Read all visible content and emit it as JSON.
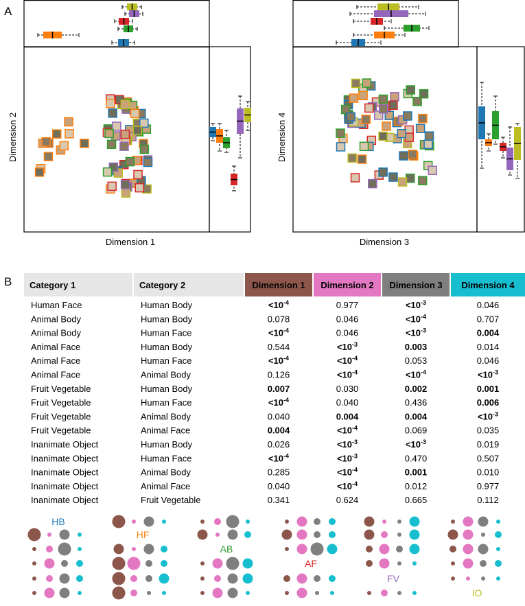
{
  "panel_a": {
    "label": "A",
    "plots": [
      {
        "y_label": "Dimension 2",
        "x_label": "Dimension 1"
      },
      {
        "y_label": "Dimension 4",
        "x_label": "Dimension 3"
      }
    ]
  },
  "panel_b": {
    "label": "B",
    "table": {
      "header": [
        "Category 1",
        "Category 2",
        "Dimension 1",
        "Dimension 2",
        "Dimension 3",
        "Dimension 4"
      ],
      "header_colors": [
        "#e6e6e6",
        "#e6e6e6",
        "#8c564b",
        "#e377c2",
        "#7f7f7f",
        "#17becf"
      ],
      "rows": [
        [
          "Human Face",
          "Human Body",
          {
            "text": "<10",
            "sup": "-4",
            "bold": true
          },
          {
            "text": "0.977"
          },
          {
            "text": "<10",
            "sup": "-3",
            "bold": true
          },
          {
            "text": "0.046"
          }
        ],
        [
          "Animal Body",
          "Human Body",
          {
            "text": "0.078"
          },
          {
            "text": "0.046"
          },
          {
            "text": "<10",
            "sup": "-4",
            "bold": true
          },
          {
            "text": "0.707"
          }
        ],
        [
          "Animal Body",
          "Human Face",
          {
            "text": "<10",
            "sup": "-4",
            "bold": true
          },
          {
            "text": "0.046"
          },
          {
            "text": "<10",
            "sup": "-3",
            "bold": true
          },
          {
            "text": "0.004",
            "bold": true
          }
        ],
        [
          "Animal Face",
          "Human Body",
          {
            "text": "0.544"
          },
          {
            "text": "<10",
            "sup": "-3",
            "bold": true
          },
          {
            "text": "0.003",
            "bold": true
          },
          {
            "text": "0.014"
          }
        ],
        [
          "Animal Face",
          "Human Face",
          {
            "text": "<10",
            "sup": "-4",
            "bold": true
          },
          {
            "text": "<10",
            "sup": "-4",
            "bold": true
          },
          {
            "text": "0.053"
          },
          {
            "text": "0.046"
          }
        ],
        [
          "Animal Face",
          "Animal Body",
          {
            "text": "0.126"
          },
          {
            "text": "<10",
            "sup": "-4",
            "bold": true
          },
          {
            "text": "<10",
            "sup": "-4",
            "bold": true
          },
          {
            "text": "<10",
            "sup": "-3",
            "bold": true
          }
        ],
        [
          "Fruit Vegetable",
          "Human Body",
          {
            "text": "0.007",
            "bold": true
          },
          {
            "text": "0.030"
          },
          {
            "text": "0.002",
            "bold": true
          },
          {
            "text": "0.001",
            "bold": true
          }
        ],
        [
          "Fruit Vegetable",
          "Human Face",
          {
            "text": "<10",
            "sup": "-4",
            "bold": true
          },
          {
            "text": "0.040"
          },
          {
            "text": "0.436"
          },
          {
            "text": "0.006",
            "bold": true
          }
        ],
        [
          "Fruit Vegetable",
          "Animal Body",
          {
            "text": "0.040"
          },
          {
            "text": "0.004",
            "bold": true
          },
          {
            "text": "0.004",
            "bold": true
          },
          {
            "text": "<10",
            "sup": "-3",
            "bold": true
          }
        ],
        [
          "Fruit Vegetable",
          "Animal Face",
          {
            "text": "0.004",
            "bold": true
          },
          {
            "text": "<10",
            "sup": "-4",
            "bold": true
          },
          {
            "text": "0.069"
          },
          {
            "text": "0.035"
          }
        ],
        [
          "Inanimate Object",
          "Human Body",
          {
            "text": "0.026"
          },
          {
            "text": "<10",
            "sup": "-3",
            "bold": true
          },
          {
            "text": "<10",
            "sup": "-3",
            "bold": true
          },
          {
            "text": "0.019"
          }
        ],
        [
          "Inanimate Object",
          "Human Face",
          {
            "text": "<10",
            "sup": "-4",
            "bold": true
          },
          {
            "text": "<10",
            "sup": "-3",
            "bold": true
          },
          {
            "text": "0.470"
          },
          {
            "text": "0.507"
          }
        ],
        [
          "Inanimate Object",
          "Animal Body",
          {
            "text": "0.285"
          },
          {
            "text": "<10",
            "sup": "-4",
            "bold": true
          },
          {
            "text": "0.001",
            "bold": true
          },
          {
            "text": "0.010"
          }
        ],
        [
          "Inanimate Object",
          "Animal Face",
          {
            "text": "0.040"
          },
          {
            "text": "<10",
            "sup": "-4",
            "bold": true
          },
          {
            "text": "0.012"
          },
          {
            "text": "0.977"
          }
        ],
        [
          "Inanimate Object",
          "Fruit Vegetable",
          {
            "text": "0.341"
          },
          {
            "text": "0.624"
          },
          {
            "text": "0.665"
          },
          {
            "text": "0.112"
          }
        ]
      ]
    },
    "dots": {
      "column_colors": [
        "#8c564b",
        "#e377c2",
        "#7f7f7f",
        "#17becf"
      ],
      "groups": [
        {
          "label": "HB",
          "color": "#1f77b4",
          "sizes": [
            null,
            [
              4,
              1,
              3,
              1
            ],
            [
              1,
              2,
              4,
              1
            ],
            [
              1,
              3,
              2,
              2
            ],
            [
              1,
              2,
              3,
              2
            ],
            [
              1,
              3,
              3,
              1
            ]
          ]
        },
        {
          "label": "HF",
          "color": "#ff7f0e",
          "sizes": [
            [
              4,
              1,
              3,
              1
            ],
            null,
            [
              3,
              1,
              3,
              2
            ],
            [
              4,
              4,
              2,
              2
            ],
            [
              4,
              2,
              2,
              3
            ],
            [
              4,
              2,
              1,
              1
            ]
          ]
        },
        {
          "label": "AB",
          "color": "#2ca02c",
          "sizes": [
            [
              1,
              2,
              4,
              1
            ],
            [
              3,
              1,
              3,
              2
            ],
            null,
            [
              1,
              3,
              4,
              3
            ],
            [
              1,
              2,
              3,
              3
            ],
            [
              1,
              3,
              3,
              1
            ]
          ]
        },
        {
          "label": "AF",
          "color": "#d62728",
          "sizes": [
            [
              1,
              3,
              2,
              2
            ],
            [
              3,
              3,
              2,
              2
            ],
            [
              1,
              3,
              4,
              3
            ],
            null,
            [
              2,
              3,
              2,
              2
            ],
            [
              1,
              3,
              1,
              1
            ]
          ]
        },
        {
          "label": "FV",
          "color": "#9467bd",
          "sizes": [
            [
              3,
              1,
              1,
              3
            ],
            [
              3,
              2,
              1,
              3
            ],
            [
              2,
              3,
              2,
              3
            ],
            [
              2,
              3,
              1,
              1
            ],
            null,
            [
              1,
              2,
              1,
              1
            ]
          ]
        },
        {
          "label": "IO",
          "color": "#bcbd22",
          "sizes": [
            [
              1,
              3,
              3,
              1
            ],
            [
              3,
              3,
              1,
              2
            ],
            [
              2,
              3,
              3,
              1
            ],
            [
              1,
              3,
              2,
              2
            ],
            [
              1,
              1,
              1,
              1
            ],
            null
          ]
        }
      ]
    }
  }
}
